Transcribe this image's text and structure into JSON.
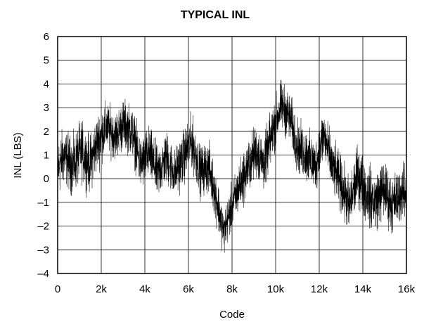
{
  "chart_data": {
    "type": "line",
    "title": "TYPICAL INL",
    "xlabel": "Code",
    "ylabel": "INL (LBS)",
    "xlim": [
      0,
      16384
    ],
    "ylim": [
      -4,
      6
    ],
    "grid": true,
    "x_ticks": [
      {
        "value": 0,
        "label": "0"
      },
      {
        "value": 2048,
        "label": "2k"
      },
      {
        "value": 4096,
        "label": "4k"
      },
      {
        "value": 6144,
        "label": "6k"
      },
      {
        "value": 8192,
        "label": "8k"
      },
      {
        "value": 10240,
        "label": "10k"
      },
      {
        "value": 12288,
        "label": "12k"
      },
      {
        "value": 14336,
        "label": "14k"
      },
      {
        "value": 16384,
        "label": "16k"
      }
    ],
    "y_ticks": [
      {
        "value": 6,
        "label": "6"
      },
      {
        "value": 5,
        "label": "5"
      },
      {
        "value": 4,
        "label": "4"
      },
      {
        "value": 3,
        "label": "3"
      },
      {
        "value": 2,
        "label": "2"
      },
      {
        "value": 1,
        "label": "1"
      },
      {
        "value": 0,
        "label": "0"
      },
      {
        "value": -1,
        "label": "–1"
      },
      {
        "value": -2,
        "label": "–2"
      },
      {
        "value": -3,
        "label": "–3"
      },
      {
        "value": -4,
        "label": "–4"
      }
    ],
    "series": [
      {
        "color": "#000000",
        "envelope": [
          {
            "x": 0,
            "center": 0.4,
            "spread": 1.8
          },
          {
            "x": 300,
            "center": 1.0,
            "spread": 1.7
          },
          {
            "x": 700,
            "center": 0.5,
            "spread": 1.7
          },
          {
            "x": 1100,
            "center": 1.2,
            "spread": 1.8
          },
          {
            "x": 1500,
            "center": 0.6,
            "spread": 1.7
          },
          {
            "x": 1900,
            "center": 1.6,
            "spread": 1.7
          },
          {
            "x": 2300,
            "center": 2.2,
            "spread": 1.5
          },
          {
            "x": 2700,
            "center": 1.8,
            "spread": 1.4
          },
          {
            "x": 3100,
            "center": 2.3,
            "spread": 1.5
          },
          {
            "x": 3500,
            "center": 2.0,
            "spread": 1.5
          },
          {
            "x": 3900,
            "center": 0.6,
            "spread": 1.6
          },
          {
            "x": 4300,
            "center": 1.1,
            "spread": 1.6
          },
          {
            "x": 4700,
            "center": 0.2,
            "spread": 1.6
          },
          {
            "x": 5100,
            "center": 0.9,
            "spread": 1.6
          },
          {
            "x": 5500,
            "center": 0.2,
            "spread": 1.5
          },
          {
            "x": 5900,
            "center": 0.9,
            "spread": 1.6
          },
          {
            "x": 6300,
            "center": 1.6,
            "spread": 1.6
          },
          {
            "x": 6700,
            "center": 0.3,
            "spread": 1.5
          },
          {
            "x": 7100,
            "center": 0.5,
            "spread": 1.5
          },
          {
            "x": 7500,
            "center": -1.0,
            "spread": 1.5
          },
          {
            "x": 7800,
            "center": -2.3,
            "spread": 1.3
          },
          {
            "x": 8100,
            "center": -1.4,
            "spread": 1.4
          },
          {
            "x": 8500,
            "center": -0.4,
            "spread": 1.5
          },
          {
            "x": 8900,
            "center": 0.4,
            "spread": 1.6
          },
          {
            "x": 9300,
            "center": 1.2,
            "spread": 1.6
          },
          {
            "x": 9700,
            "center": 0.6,
            "spread": 1.6
          },
          {
            "x": 10100,
            "center": 2.0,
            "spread": 1.6
          },
          {
            "x": 10500,
            "center": 3.1,
            "spread": 1.5
          },
          {
            "x": 10900,
            "center": 2.6,
            "spread": 1.5
          },
          {
            "x": 11300,
            "center": 1.3,
            "spread": 1.6
          },
          {
            "x": 11700,
            "center": 1.0,
            "spread": 1.6
          },
          {
            "x": 12100,
            "center": 0.5,
            "spread": 1.6
          },
          {
            "x": 12500,
            "center": 1.9,
            "spread": 1.7
          },
          {
            "x": 12900,
            "center": 0.5,
            "spread": 1.6
          },
          {
            "x": 13300,
            "center": -0.2,
            "spread": 1.7
          },
          {
            "x": 13700,
            "center": -1.2,
            "spread": 1.7
          },
          {
            "x": 14100,
            "center": 0.2,
            "spread": 1.8
          },
          {
            "x": 14500,
            "center": -0.6,
            "spread": 1.8
          },
          {
            "x": 14900,
            "center": -1.0,
            "spread": 1.8
          },
          {
            "x": 15300,
            "center": -0.4,
            "spread": 1.8
          },
          {
            "x": 15700,
            "center": -1.1,
            "spread": 1.7
          },
          {
            "x": 16100,
            "center": -0.6,
            "spread": 1.7
          },
          {
            "x": 16384,
            "center": -0.6,
            "spread": 1.6
          }
        ]
      }
    ]
  }
}
